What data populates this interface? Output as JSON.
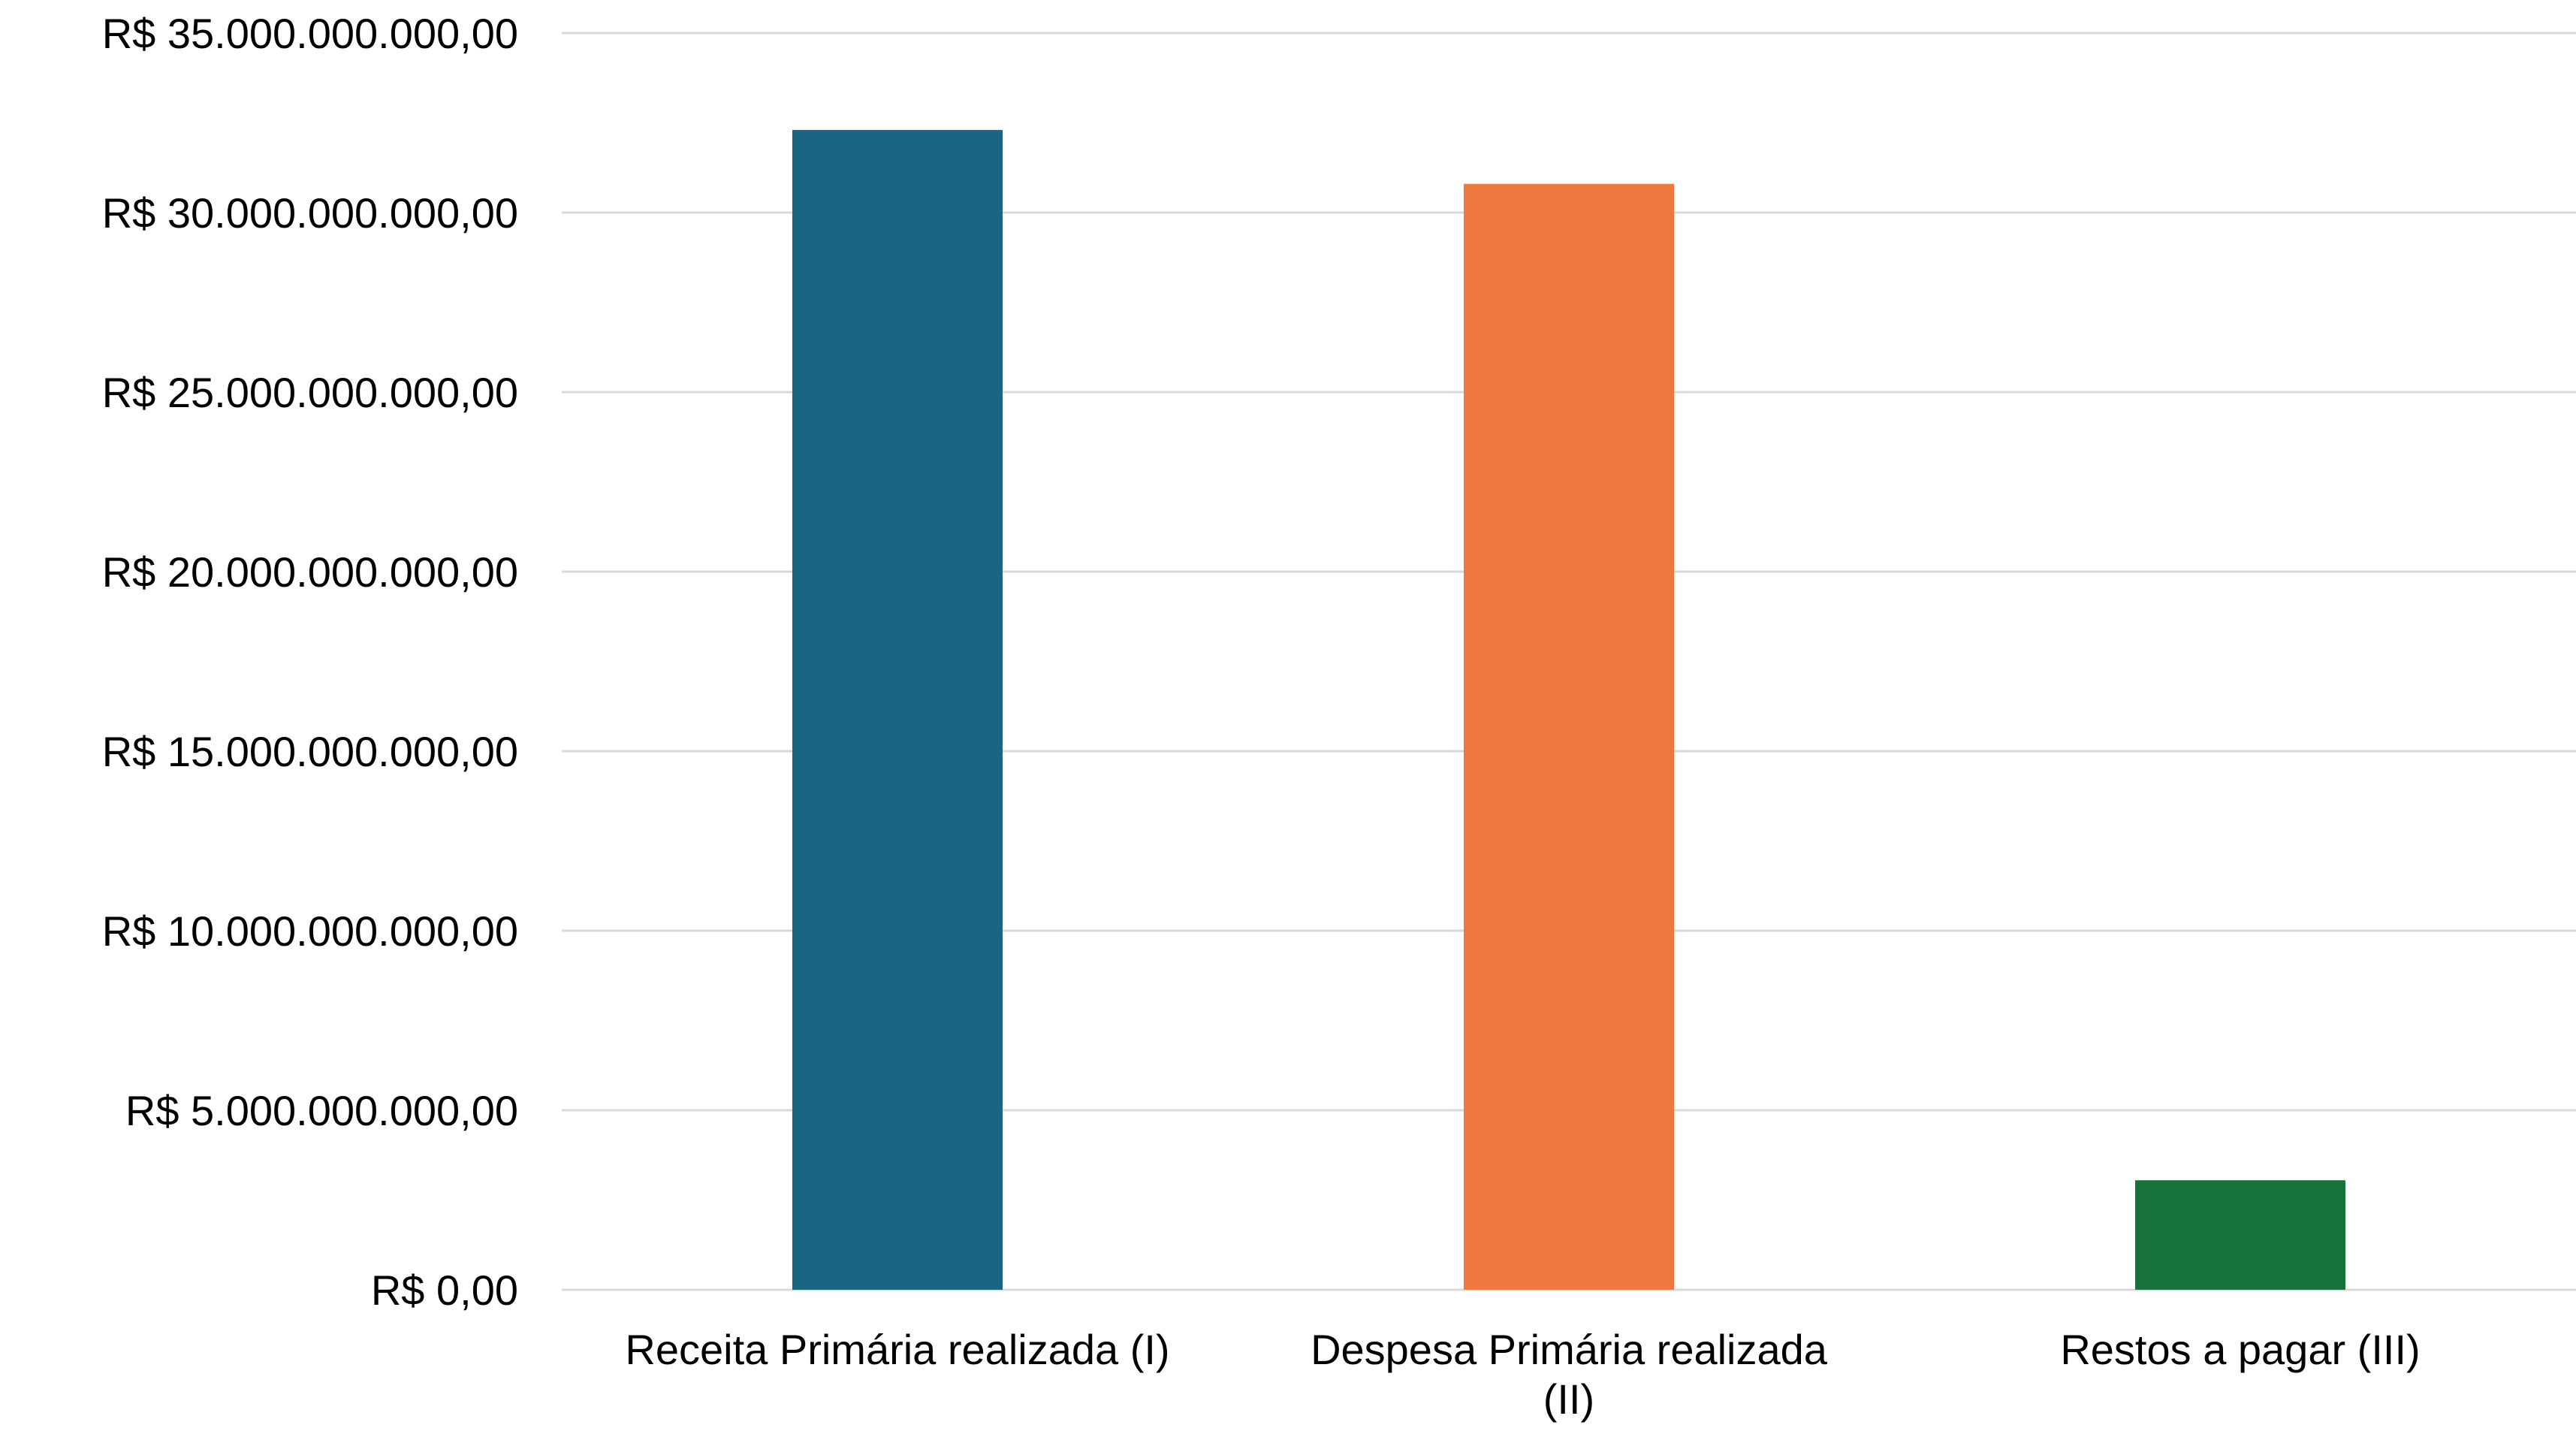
{
  "chart_data": {
    "type": "bar",
    "title": "",
    "xlabel": "",
    "ylabel": "",
    "categories": [
      "Receita Primária realizada (I)",
      "Despesa Primária realizada (II)",
      "Restos a pagar (III)"
    ],
    "values": [
      32300000000,
      30800000000,
      3050000000
    ],
    "colors": [
      "#1b6482",
      "#ee783f",
      "#17723c"
    ],
    "ylim": [
      0,
      35000000000
    ],
    "yticks": [
      0,
      5000000000,
      10000000000,
      15000000000,
      20000000000,
      25000000000,
      30000000000,
      35000000000
    ],
    "ytick_labels": [
      "R$ 0,00",
      "R$ 5.000.000.000,00",
      "R$ 10.000.000.000,00",
      "R$ 15.000.000.000,00",
      "R$ 20.000.000.000,00",
      "R$ 25.000.000.000,00",
      "R$ 30.000.000.000,00",
      "R$ 35.000.000.000,00"
    ],
    "category_label_lines": [
      [
        "Receita Primária realizada (I)"
      ],
      [
        "Despesa Primária realizada",
        "(II)"
      ],
      [
        "Restos a pagar (III)"
      ]
    ],
    "grid": true,
    "legend": "none"
  }
}
